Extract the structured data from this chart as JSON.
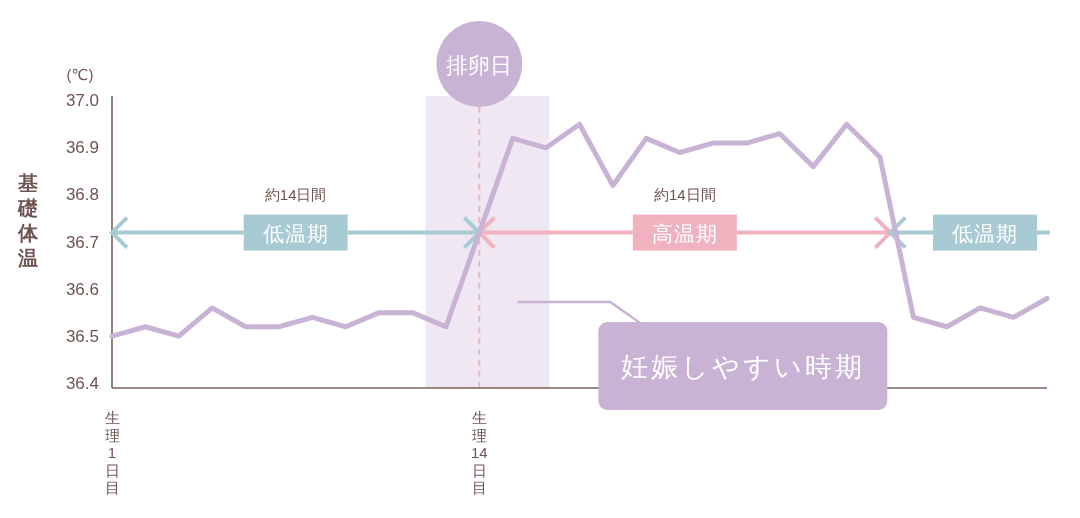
{
  "chart_data": {
    "type": "line",
    "ylabel": "基礎体温",
    "categories": [
      "生理1日目",
      null,
      null,
      null,
      null,
      null,
      null,
      null,
      null,
      null,
      null,
      "生理14日目",
      null,
      null,
      null,
      null,
      null,
      null,
      null,
      null,
      null,
      null,
      null,
      null,
      null,
      null,
      null,
      null,
      null
    ],
    "values": [
      36.5,
      36.52,
      36.5,
      36.56,
      36.52,
      36.52,
      36.54,
      36.52,
      36.55,
      36.55,
      36.52,
      36.72,
      36.92,
      36.9,
      36.95,
      36.82,
      36.92,
      36.89,
      36.91,
      36.91,
      36.93,
      36.86,
      36.95,
      36.88,
      36.54,
      36.52,
      36.56,
      36.54,
      36.58
    ],
    "color": "#c9b3d5",
    "ylim": [
      36.39,
      37.01
    ],
    "yticks": [
      36.4,
      36.5,
      36.6,
      36.7,
      36.8,
      36.9,
      {
        "value": 37,
        "label": "37.0"
      }
    ],
    "ref_lines": [
      {
        "axis": "x",
        "value": "生理14日目",
        "label": "排卵日",
        "color": "#e8b6c6",
        "line_style": "dashed"
      }
    ],
    "annotations": [
      "(℃)",
      "約14日間",
      {
        "text": "低温期",
        "x": "生理14日目",
        "y": 36.72
      },
      "約14日間",
      {
        "text": "高温期",
        "x": "生理14日目",
        "y": 36.72
      },
      "低温期",
      "妊娠しやすい時期"
    ]
  }
}
